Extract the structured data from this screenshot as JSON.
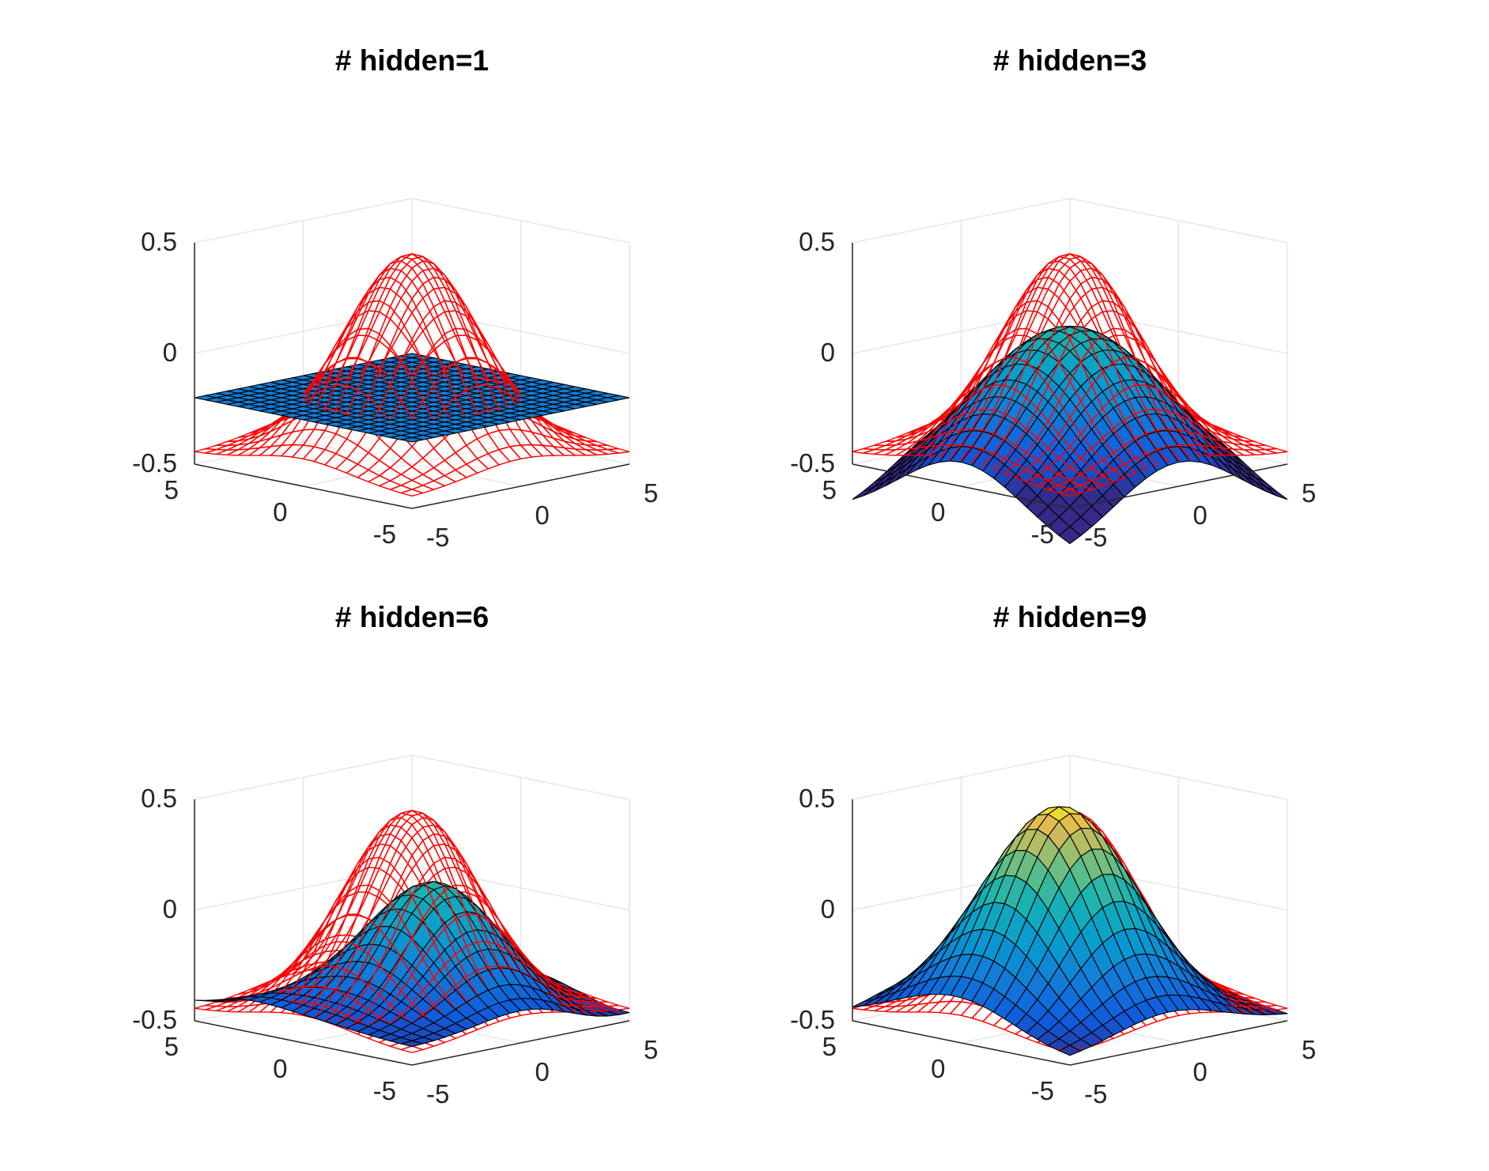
{
  "figure": {
    "background": "#ffffff"
  },
  "style": {
    "target_color": "#ff0000",
    "mesh_edge_color": "#000000",
    "box_line_color": "#262626",
    "grid_color": "#e6e6e6",
    "colormap": "parula"
  },
  "chart_data": [
    {
      "type": "surface3d",
      "title": "# hidden=1",
      "x_range": [
        -5,
        5
      ],
      "y_range": [
        -5,
        5
      ],
      "zlim": [
        -0.5,
        0.5
      ],
      "x_ticks": [
        "-5",
        "0",
        "5"
      ],
      "y_ticks": [
        "-5",
        "0",
        "5"
      ],
      "z_ticks": [
        "-0.5",
        "0",
        "0.5"
      ],
      "grid_points": 21,
      "grid": true,
      "target_surface": {
        "form": "z = 0.9*exp(-(x^2+y^2)/10) - 0.45",
        "min": -0.45,
        "max": 0.45,
        "style": "red wireframe"
      },
      "fitted_surface": {
        "bias": -0.2,
        "components": []
      }
    },
    {
      "type": "surface3d",
      "title": "# hidden=3",
      "x_range": [
        -5,
        5
      ],
      "y_range": [
        -5,
        5
      ],
      "zlim": [
        -0.5,
        0.5
      ],
      "x_ticks": [
        "-5",
        "0",
        "5"
      ],
      "y_ticks": [
        "-5",
        "0",
        "5"
      ],
      "z_ticks": [
        "-0.5",
        "0",
        "0.5"
      ],
      "grid_points": 21,
      "grid": true,
      "target_surface": {
        "form": "z = 0.9*exp(-(x^2+y^2)/10) - 0.45",
        "min": -0.45,
        "max": 0.45,
        "style": "red wireframe"
      },
      "fitted_surface": {
        "bias": -0.78,
        "components": [
          {
            "amp": 0.45,
            "cx": 0,
            "cy": 0,
            "sx": 2.8,
            "sy": 5.5
          },
          {
            "amp": 0.45,
            "cx": 0,
            "cy": 0,
            "sx": 5.5,
            "sy": 2.8
          }
        ]
      }
    },
    {
      "type": "surface3d",
      "title": "# hidden=6",
      "x_range": [
        -5,
        5
      ],
      "y_range": [
        -5,
        5
      ],
      "zlim": [
        -0.5,
        0.5
      ],
      "x_ticks": [
        "-5",
        "0",
        "5"
      ],
      "y_ticks": [
        "-5",
        "0",
        "5"
      ],
      "z_ticks": [
        "-0.5",
        "0",
        "0.5"
      ],
      "grid_points": 21,
      "grid": true,
      "target_surface": {
        "form": "z = 0.9*exp(-(x^2+y^2)/10) - 0.45",
        "min": -0.45,
        "max": 0.45,
        "style": "red wireframe"
      },
      "fitted_surface": {
        "bias": -0.42,
        "components": [
          {
            "amp": 0.55,
            "cx": 0.6,
            "cy": -0.4,
            "sx": 2.2,
            "sy": 2.2
          },
          {
            "amp": -0.1,
            "cx": -5,
            "cy": 3,
            "sx": 1.4,
            "sy": 2
          },
          {
            "amp": -0.06,
            "cx": 4.5,
            "cy": -4,
            "sx": 2,
            "sy": 2
          },
          {
            "amp": 0.08,
            "cx": -4,
            "cy": 4.5,
            "sx": 2.5,
            "sy": 2.5
          }
        ]
      }
    },
    {
      "type": "surface3d",
      "title": "# hidden=9",
      "x_range": [
        -5,
        5
      ],
      "y_range": [
        -5,
        5
      ],
      "zlim": [
        -0.5,
        0.5
      ],
      "x_ticks": [
        "-5",
        "0",
        "5"
      ],
      "y_ticks": [
        "-5",
        "0",
        "5"
      ],
      "z_ticks": [
        "-0.5",
        "0",
        "0.5"
      ],
      "grid_points": 21,
      "grid": true,
      "target_surface": {
        "form": "z = 0.9*exp(-(x^2+y^2)/10) - 0.45",
        "min": -0.45,
        "max": 0.45,
        "style": "red wireframe"
      },
      "fitted_surface": {
        "bias": -0.48,
        "components": [
          {
            "amp": 0.95,
            "cx": 0,
            "cy": 0.4,
            "sx": 2.5,
            "sy": 2.5
          },
          {
            "amp": -0.07,
            "cx": -4,
            "cy": -4.2,
            "sx": 1.5,
            "sy": 1.5
          },
          {
            "amp": 0.05,
            "cx": -3,
            "cy": 3,
            "sx": 2,
            "sy": 2
          }
        ]
      }
    }
  ]
}
